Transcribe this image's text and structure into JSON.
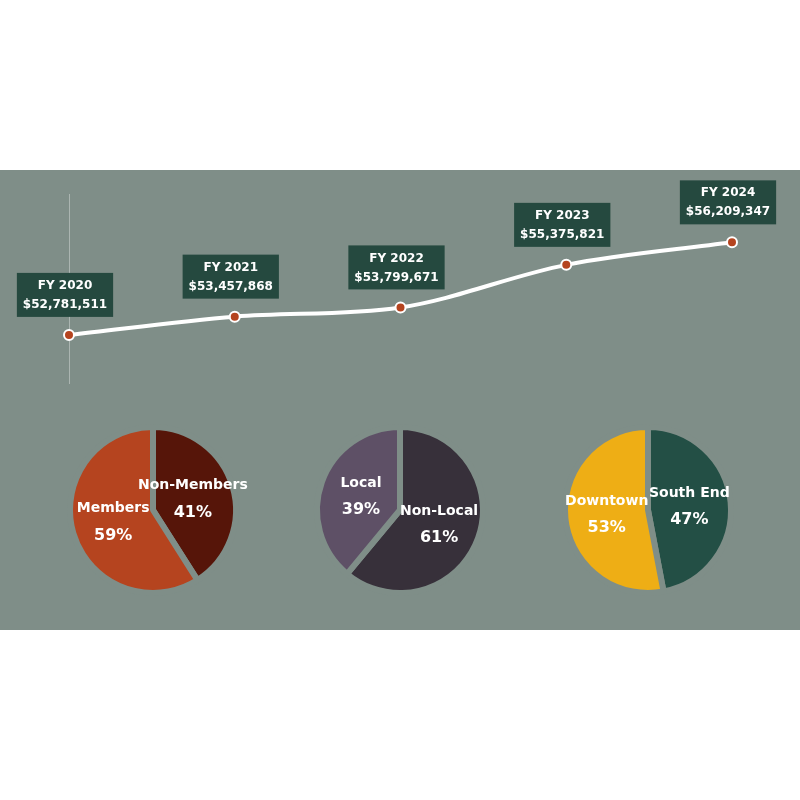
{
  "chart_data": [
    {
      "type": "line",
      "categories": [
        "FY 2020",
        "FY 2021",
        "FY 2022",
        "FY 2023",
        "FY 2024"
      ],
      "values": [
        52781511,
        53457868,
        53799671,
        55375821,
        56209347
      ],
      "value_labels": [
        "$52,781,511",
        "$53,457,868",
        "$53,799,671",
        "$55,375,821",
        "$56,209,347"
      ],
      "color": "#ffffff",
      "ylim": [
        51000000,
        58000000
      ],
      "data_labels": true,
      "tick_labels": false
    },
    {
      "type": "pie",
      "categories": [
        "Non-Members",
        "Members"
      ],
      "values": [
        41,
        59
      ],
      "value_labels": [
        "41%",
        "59%"
      ],
      "colors": [
        "#561509",
        "#b5441f"
      ],
      "data_labels": true
    },
    {
      "type": "pie",
      "categories": [
        "Non-Local",
        "Local"
      ],
      "values": [
        61,
        39
      ],
      "value_labels": [
        "61%",
        "39%"
      ],
      "colors": [
        "#37303a",
        "#5e5066"
      ],
      "data_labels": true
    },
    {
      "type": "pie",
      "categories": [
        "South End",
        "Downtown"
      ],
      "values": [
        47,
        53
      ],
      "value_labels": [
        "47%",
        "53%"
      ],
      "colors": [
        "#234f45",
        "#eeae15"
      ],
      "data_labels": true
    }
  ]
}
